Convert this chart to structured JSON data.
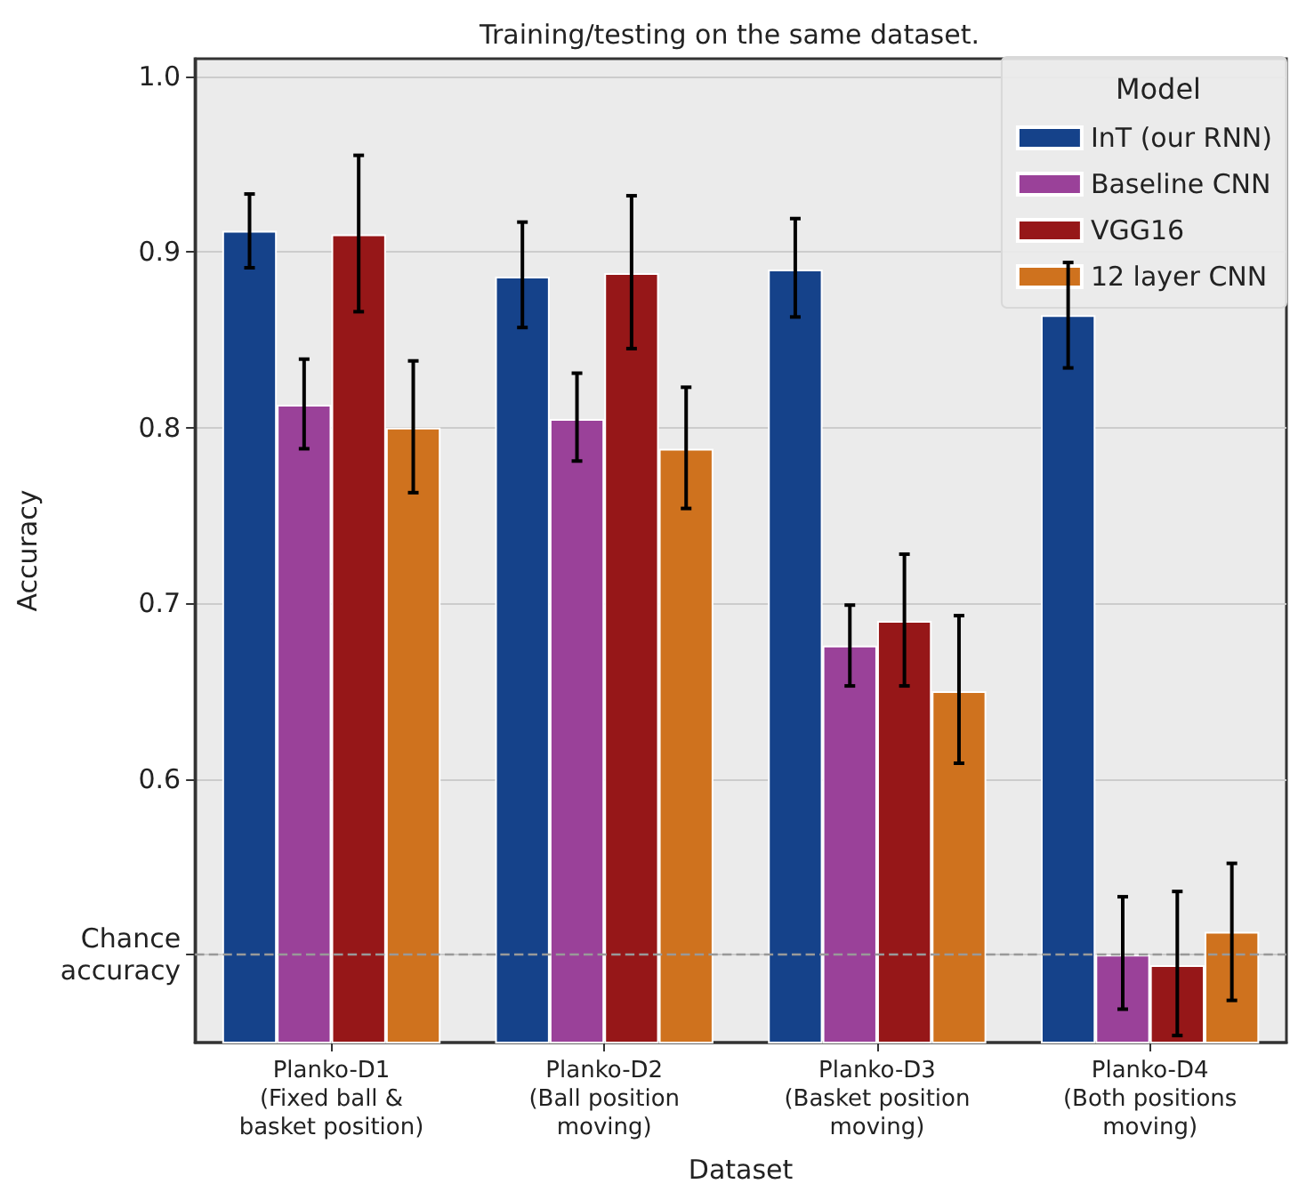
{
  "chart_data": {
    "type": "bar",
    "title": "Training/testing on the same dataset.",
    "xlabel": "Dataset",
    "ylabel": "Accuracy",
    "legend_title": "Model",
    "categories": [
      "Planko-D1\n(Fixed ball &\nbasket position)",
      "Planko-D2\n(Ball position\nmoving)",
      "Planko-D3\n(Basket position\nmoving)",
      "Planko-D4\n(Both positions\nmoving)"
    ],
    "series": [
      {
        "name": "InT (our RNN)",
        "color": "#15428a",
        "values": [
          0.912,
          0.886,
          0.89,
          0.864
        ],
        "errors": [
          [
            0.891,
            0.933
          ],
          [
            0.857,
            0.917
          ],
          [
            0.863,
            0.919
          ],
          [
            0.834,
            0.894
          ]
        ]
      },
      {
        "name": "Baseline CNN",
        "color": "#9a4199",
        "values": [
          0.813,
          0.805,
          0.676,
          0.5
        ],
        "errors": [
          [
            0.788,
            0.839
          ],
          [
            0.781,
            0.831
          ],
          [
            0.653,
            0.699
          ],
          [
            0.469,
            0.533
          ]
        ]
      },
      {
        "name": "VGG16",
        "color": "#961718",
        "values": [
          0.91,
          0.888,
          0.69,
          0.494
        ],
        "errors": [
          [
            0.866,
            0.955
          ],
          [
            0.845,
            0.932
          ],
          [
            0.653,
            0.728
          ],
          [
            0.454,
            0.536
          ]
        ]
      },
      {
        "name": "12 layer CNN",
        "color": "#cf721e",
        "values": [
          0.8,
          0.788,
          0.65,
          0.513
        ],
        "errors": [
          [
            0.763,
            0.838
          ],
          [
            0.754,
            0.823
          ],
          [
            0.609,
            0.693
          ],
          [
            0.474,
            0.552
          ]
        ]
      }
    ],
    "ylim": [
      0.45,
      1.01
    ],
    "yticks": [
      {
        "value": 0.5,
        "label": "Chance\naccuracy"
      },
      0.6,
      0.7,
      0.8,
      0.9,
      {
        "value": 1,
        "label": "1.0"
      }
    ],
    "ref_lines": [
      {
        "axis": "y",
        "value": 0.5,
        "color": "#999999",
        "line_style": "dashed"
      }
    ],
    "grid": "y",
    "legend": "top right"
  }
}
